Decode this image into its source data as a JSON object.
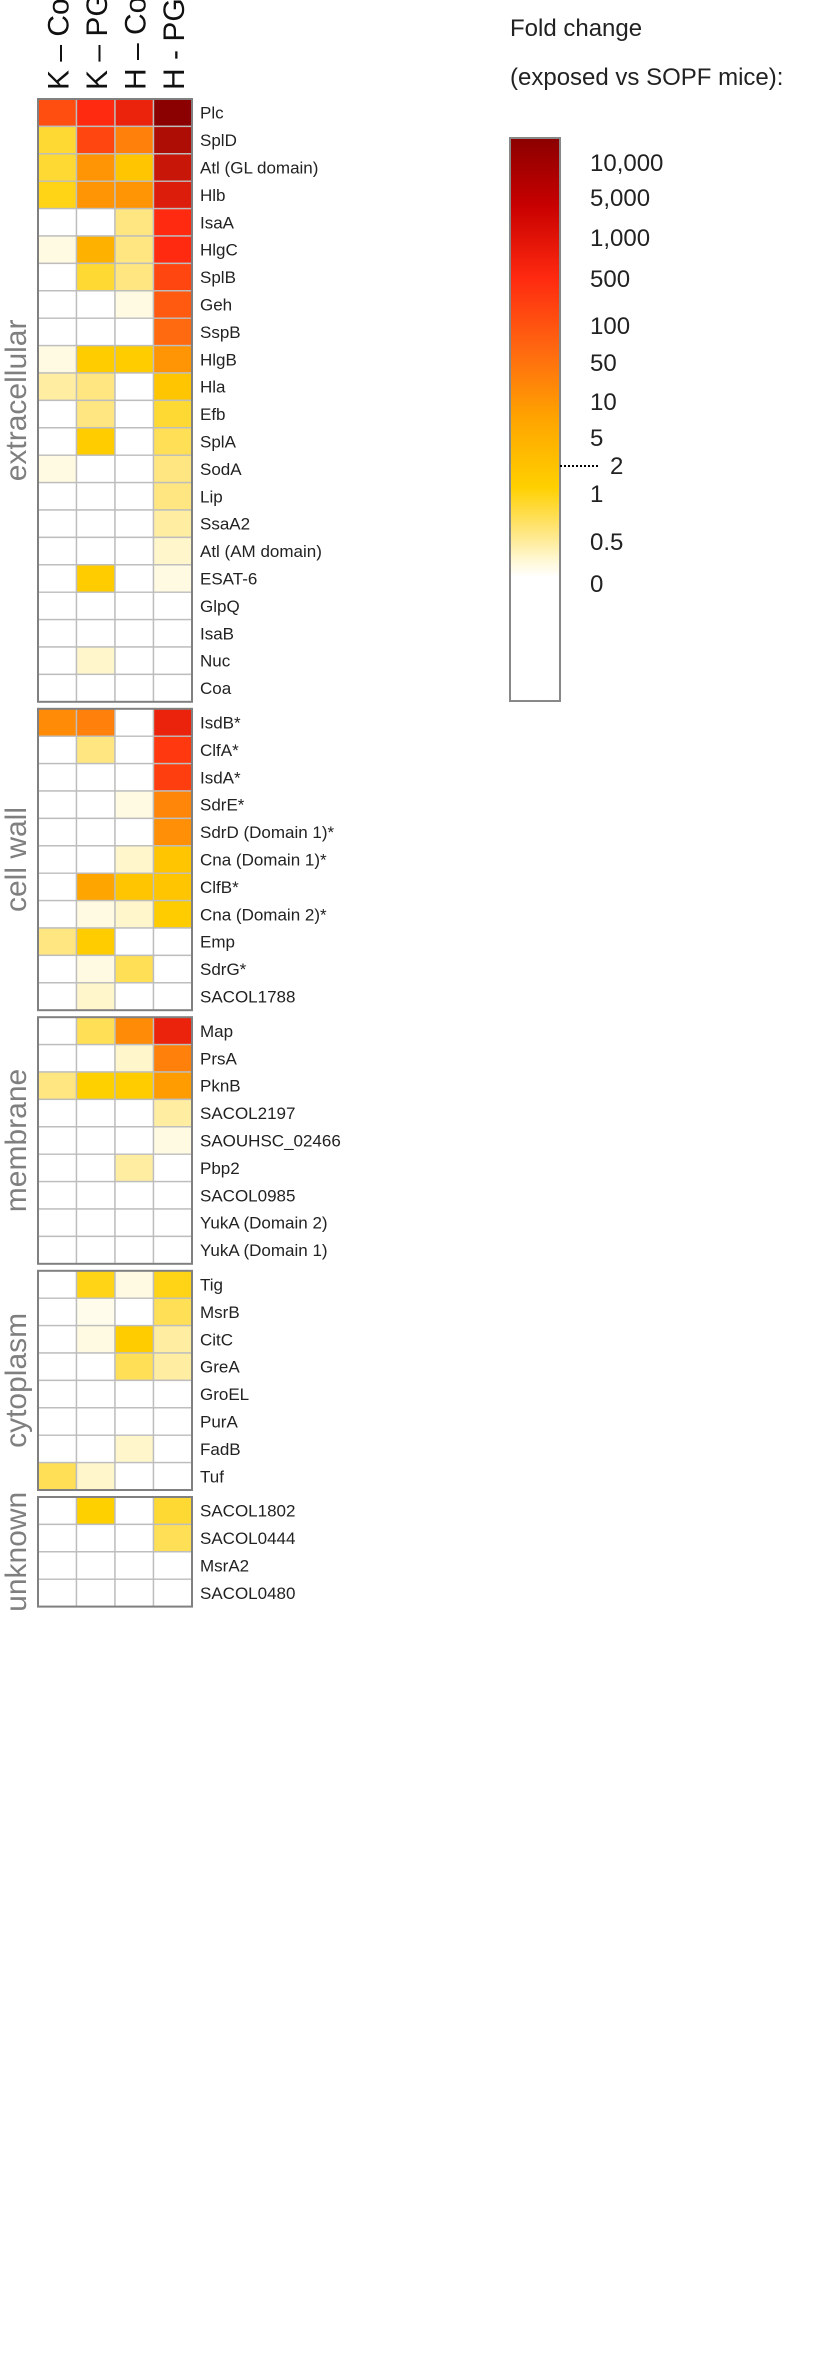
{
  "chart_data": {
    "type": "heatmap",
    "columns": [
      "K – Col",
      "K – PGA",
      "H – Col",
      "H - PGA"
    ],
    "groups": [
      {
        "name": "extracellular",
        "rows": [
          {
            "label": "Plc",
            "values": [
              400,
              1000,
              1500,
              10000
            ]
          },
          {
            "label": "SplD",
            "values": [
              5,
              500,
              100,
              5000
            ]
          },
          {
            "label": "Atl (GL domain)",
            "values": [
              5,
              50,
              10,
              3000
            ]
          },
          {
            "label": "Hlb",
            "values": [
              6,
              50,
              50,
              2000
            ]
          },
          {
            "label": "IsaA",
            "values": [
              1,
              1,
              3,
              1000
            ]
          },
          {
            "label": "HlgC",
            "values": [
              1.5,
              20,
              3,
              1000
            ]
          },
          {
            "label": "SplB",
            "values": [
              1,
              5,
              3,
              500
            ]
          },
          {
            "label": "Geh",
            "values": [
              1,
              1,
              1.5,
              300
            ]
          },
          {
            "label": "SspB",
            "values": [
              1,
              1,
              1,
              200
            ]
          },
          {
            "label": "HlgB",
            "values": [
              1.5,
              8,
              8,
              50
            ]
          },
          {
            "label": "Hla",
            "values": [
              2.5,
              3,
              1,
              10
            ]
          },
          {
            "label": "Efb",
            "values": [
              1,
              3,
              1,
              5
            ]
          },
          {
            "label": "SplA",
            "values": [
              1,
              8,
              1,
              4
            ]
          },
          {
            "label": "SodA",
            "values": [
              1.5,
              1,
              1,
              3
            ]
          },
          {
            "label": "Lip",
            "values": [
              1,
              1,
              1,
              3
            ]
          },
          {
            "label": "SsaA2",
            "values": [
              1,
              1,
              1,
              2.5
            ]
          },
          {
            "label": "Atl (AM domain)",
            "values": [
              1,
              1,
              1,
              2
            ]
          },
          {
            "label": "ESAT-6",
            "values": [
              1,
              8,
              1,
              1.5
            ]
          },
          {
            "label": "GlpQ",
            "values": [
              1,
              1,
              1,
              1
            ]
          },
          {
            "label": "IsaB",
            "values": [
              1,
              1,
              1,
              1
            ]
          },
          {
            "label": "Nuc",
            "values": [
              1,
              2,
              1,
              1
            ]
          },
          {
            "label": "Coa",
            "values": [
              1,
              1,
              1,
              1
            ]
          }
        ]
      },
      {
        "name": "cell wall",
        "rows": [
          {
            "label": "IsdB*",
            "values": [
              70,
              100,
              1,
              1500
            ]
          },
          {
            "label": "ClfA*",
            "values": [
              1,
              3,
              1,
              700
            ]
          },
          {
            "label": "IsdA*",
            "values": [
              1,
              1,
              1,
              600
            ]
          },
          {
            "label": "SdrE*",
            "values": [
              1,
              1,
              1.5,
              80
            ]
          },
          {
            "label": "SdrD (Domain 1)*",
            "values": [
              1,
              1,
              1,
              60
            ]
          },
          {
            "label": "Cna (Domain 1)*",
            "values": [
              1,
              1,
              2,
              10
            ]
          },
          {
            "label": "ClfB*",
            "values": [
              1,
              30,
              10,
              10
            ]
          },
          {
            "label": "Cna (Domain 2)*",
            "values": [
              1,
              1.5,
              2,
              8
            ]
          },
          {
            "label": "Emp",
            "values": [
              3,
              8,
              1,
              1
            ]
          },
          {
            "label": "SdrG*",
            "values": [
              1,
              1.5,
              4,
              1
            ]
          },
          {
            "label": "SACOL1788",
            "values": [
              1,
              2,
              1,
              1
            ]
          }
        ]
      },
      {
        "name": "membrane",
        "rows": [
          {
            "label": "Map",
            "values": [
              1,
              4,
              70,
              1500
            ]
          },
          {
            "label": "PrsA",
            "values": [
              1,
              1,
              2,
              100
            ]
          },
          {
            "label": "PknB",
            "values": [
              3,
              7,
              8,
              40
            ]
          },
          {
            "label": "SACOL2197",
            "values": [
              1,
              1,
              1,
              2.5
            ]
          },
          {
            "label": "SAOUHSC_02466",
            "values": [
              1,
              1,
              1,
              1.5
            ]
          },
          {
            "label": "Pbp2",
            "values": [
              1,
              1,
              2.5,
              1
            ]
          },
          {
            "label": "SACOL0985",
            "values": [
              1,
              1,
              1,
              1
            ]
          },
          {
            "label": "YukA (Domain 2)",
            "values": [
              1,
              1,
              1,
              1
            ]
          },
          {
            "label": "YukA (Domain 1)",
            "values": [
              1,
              1,
              1,
              1
            ]
          }
        ]
      },
      {
        "name": "cytoplasm",
        "rows": [
          {
            "label": "Tig",
            "values": [
              1,
              6,
              1.5,
              6
            ]
          },
          {
            "label": "MsrB",
            "values": [
              1,
              1.3,
              1,
              4
            ]
          },
          {
            "label": "CitC",
            "values": [
              1,
              1.5,
              8,
              2.5
            ]
          },
          {
            "label": "GreA",
            "values": [
              1,
              1,
              4,
              2.5
            ]
          },
          {
            "label": "GroEL",
            "values": [
              1,
              1,
              1,
              1
            ]
          },
          {
            "label": "PurA",
            "values": [
              1,
              1,
              1,
              1
            ]
          },
          {
            "label": "FadB",
            "values": [
              1,
              1,
              2,
              1
            ]
          },
          {
            "label": "Tuf",
            "values": [
              4,
              2,
              1,
              1
            ]
          }
        ]
      },
      {
        "name": "unknown",
        "rows": [
          {
            "label": "SACOL1802",
            "values": [
              1,
              7,
              1,
              5
            ]
          },
          {
            "label": "SACOL0444",
            "values": [
              1,
              1,
              1,
              4
            ]
          },
          {
            "label": "MsrA2",
            "values": [
              1,
              1,
              1,
              1
            ]
          },
          {
            "label": "SACOL0480",
            "values": [
              1,
              1,
              1,
              1
            ]
          }
        ]
      }
    ],
    "legend": {
      "title_line1": "Fold change",
      "title_line2": "(exposed vs SOPF mice):",
      "ticks": [
        "10,000",
        "5,000",
        "1,000",
        "500",
        "100",
        "50",
        "10",
        "5",
        "2",
        "1",
        "0.5",
        "0"
      ],
      "tick_values": [
        10000,
        5000,
        1000,
        500,
        100,
        50,
        10,
        5,
        2,
        1,
        0.5,
        0
      ],
      "threshold": 2,
      "color_stops": [
        {
          "value": 1,
          "color": "#ffffff"
        },
        {
          "value": 2,
          "color": "#fff6cc"
        },
        {
          "value": 3,
          "color": "#ffe680"
        },
        {
          "value": 7,
          "color": "#ffd000"
        },
        {
          "value": 30,
          "color": "#ffa500"
        },
        {
          "value": 200,
          "color": "#ff6a10"
        },
        {
          "value": 1000,
          "color": "#ff2a10"
        },
        {
          "value": 10000,
          "color": "#8b0000"
        }
      ]
    }
  }
}
